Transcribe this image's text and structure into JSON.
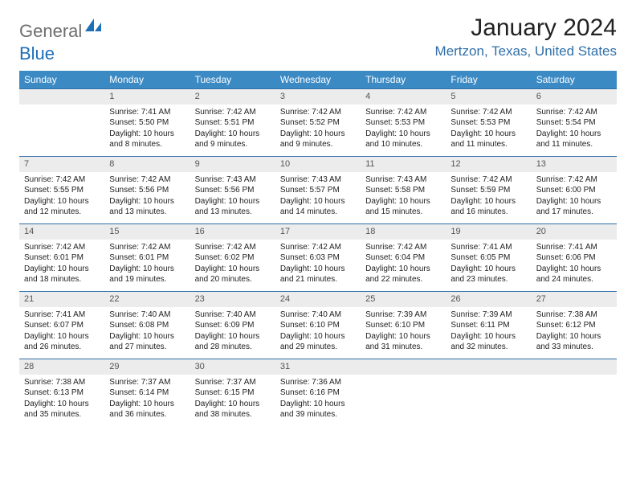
{
  "logo": {
    "part1": "General",
    "part2": "Blue"
  },
  "title": "January 2024",
  "location": "Mertzon, Texas, United States",
  "dayHeaders": [
    "Sunday",
    "Monday",
    "Tuesday",
    "Wednesday",
    "Thursday",
    "Friday",
    "Saturday"
  ],
  "colors": {
    "headerBg": "#3b8ac4",
    "accent": "#2f6fa8",
    "dayBg": "#ececec",
    "logoGray": "#6e6e6e",
    "logoBlue": "#1d6fb8"
  },
  "weeks": [
    [
      {
        "n": "",
        "empty": true
      },
      {
        "n": "1",
        "sr": "Sunrise: 7:41 AM",
        "ss": "Sunset: 5:50 PM",
        "dl": "Daylight: 10 hours and 8 minutes."
      },
      {
        "n": "2",
        "sr": "Sunrise: 7:42 AM",
        "ss": "Sunset: 5:51 PM",
        "dl": "Daylight: 10 hours and 9 minutes."
      },
      {
        "n": "3",
        "sr": "Sunrise: 7:42 AM",
        "ss": "Sunset: 5:52 PM",
        "dl": "Daylight: 10 hours and 9 minutes."
      },
      {
        "n": "4",
        "sr": "Sunrise: 7:42 AM",
        "ss": "Sunset: 5:53 PM",
        "dl": "Daylight: 10 hours and 10 minutes."
      },
      {
        "n": "5",
        "sr": "Sunrise: 7:42 AM",
        "ss": "Sunset: 5:53 PM",
        "dl": "Daylight: 10 hours and 11 minutes."
      },
      {
        "n": "6",
        "sr": "Sunrise: 7:42 AM",
        "ss": "Sunset: 5:54 PM",
        "dl": "Daylight: 10 hours and 11 minutes."
      }
    ],
    [
      {
        "n": "7",
        "sr": "Sunrise: 7:42 AM",
        "ss": "Sunset: 5:55 PM",
        "dl": "Daylight: 10 hours and 12 minutes."
      },
      {
        "n": "8",
        "sr": "Sunrise: 7:42 AM",
        "ss": "Sunset: 5:56 PM",
        "dl": "Daylight: 10 hours and 13 minutes."
      },
      {
        "n": "9",
        "sr": "Sunrise: 7:43 AM",
        "ss": "Sunset: 5:56 PM",
        "dl": "Daylight: 10 hours and 13 minutes."
      },
      {
        "n": "10",
        "sr": "Sunrise: 7:43 AM",
        "ss": "Sunset: 5:57 PM",
        "dl": "Daylight: 10 hours and 14 minutes."
      },
      {
        "n": "11",
        "sr": "Sunrise: 7:43 AM",
        "ss": "Sunset: 5:58 PM",
        "dl": "Daylight: 10 hours and 15 minutes."
      },
      {
        "n": "12",
        "sr": "Sunrise: 7:42 AM",
        "ss": "Sunset: 5:59 PM",
        "dl": "Daylight: 10 hours and 16 minutes."
      },
      {
        "n": "13",
        "sr": "Sunrise: 7:42 AM",
        "ss": "Sunset: 6:00 PM",
        "dl": "Daylight: 10 hours and 17 minutes."
      }
    ],
    [
      {
        "n": "14",
        "sr": "Sunrise: 7:42 AM",
        "ss": "Sunset: 6:01 PM",
        "dl": "Daylight: 10 hours and 18 minutes."
      },
      {
        "n": "15",
        "sr": "Sunrise: 7:42 AM",
        "ss": "Sunset: 6:01 PM",
        "dl": "Daylight: 10 hours and 19 minutes."
      },
      {
        "n": "16",
        "sr": "Sunrise: 7:42 AM",
        "ss": "Sunset: 6:02 PM",
        "dl": "Daylight: 10 hours and 20 minutes."
      },
      {
        "n": "17",
        "sr": "Sunrise: 7:42 AM",
        "ss": "Sunset: 6:03 PM",
        "dl": "Daylight: 10 hours and 21 minutes."
      },
      {
        "n": "18",
        "sr": "Sunrise: 7:42 AM",
        "ss": "Sunset: 6:04 PM",
        "dl": "Daylight: 10 hours and 22 minutes."
      },
      {
        "n": "19",
        "sr": "Sunrise: 7:41 AM",
        "ss": "Sunset: 6:05 PM",
        "dl": "Daylight: 10 hours and 23 minutes."
      },
      {
        "n": "20",
        "sr": "Sunrise: 7:41 AM",
        "ss": "Sunset: 6:06 PM",
        "dl": "Daylight: 10 hours and 24 minutes."
      }
    ],
    [
      {
        "n": "21",
        "sr": "Sunrise: 7:41 AM",
        "ss": "Sunset: 6:07 PM",
        "dl": "Daylight: 10 hours and 26 minutes."
      },
      {
        "n": "22",
        "sr": "Sunrise: 7:40 AM",
        "ss": "Sunset: 6:08 PM",
        "dl": "Daylight: 10 hours and 27 minutes."
      },
      {
        "n": "23",
        "sr": "Sunrise: 7:40 AM",
        "ss": "Sunset: 6:09 PM",
        "dl": "Daylight: 10 hours and 28 minutes."
      },
      {
        "n": "24",
        "sr": "Sunrise: 7:40 AM",
        "ss": "Sunset: 6:10 PM",
        "dl": "Daylight: 10 hours and 29 minutes."
      },
      {
        "n": "25",
        "sr": "Sunrise: 7:39 AM",
        "ss": "Sunset: 6:10 PM",
        "dl": "Daylight: 10 hours and 31 minutes."
      },
      {
        "n": "26",
        "sr": "Sunrise: 7:39 AM",
        "ss": "Sunset: 6:11 PM",
        "dl": "Daylight: 10 hours and 32 minutes."
      },
      {
        "n": "27",
        "sr": "Sunrise: 7:38 AM",
        "ss": "Sunset: 6:12 PM",
        "dl": "Daylight: 10 hours and 33 minutes."
      }
    ],
    [
      {
        "n": "28",
        "sr": "Sunrise: 7:38 AM",
        "ss": "Sunset: 6:13 PM",
        "dl": "Daylight: 10 hours and 35 minutes."
      },
      {
        "n": "29",
        "sr": "Sunrise: 7:37 AM",
        "ss": "Sunset: 6:14 PM",
        "dl": "Daylight: 10 hours and 36 minutes."
      },
      {
        "n": "30",
        "sr": "Sunrise: 7:37 AM",
        "ss": "Sunset: 6:15 PM",
        "dl": "Daylight: 10 hours and 38 minutes."
      },
      {
        "n": "31",
        "sr": "Sunrise: 7:36 AM",
        "ss": "Sunset: 6:16 PM",
        "dl": "Daylight: 10 hours and 39 minutes."
      },
      {
        "n": "",
        "empty": true
      },
      {
        "n": "",
        "empty": true
      },
      {
        "n": "",
        "empty": true
      }
    ]
  ]
}
